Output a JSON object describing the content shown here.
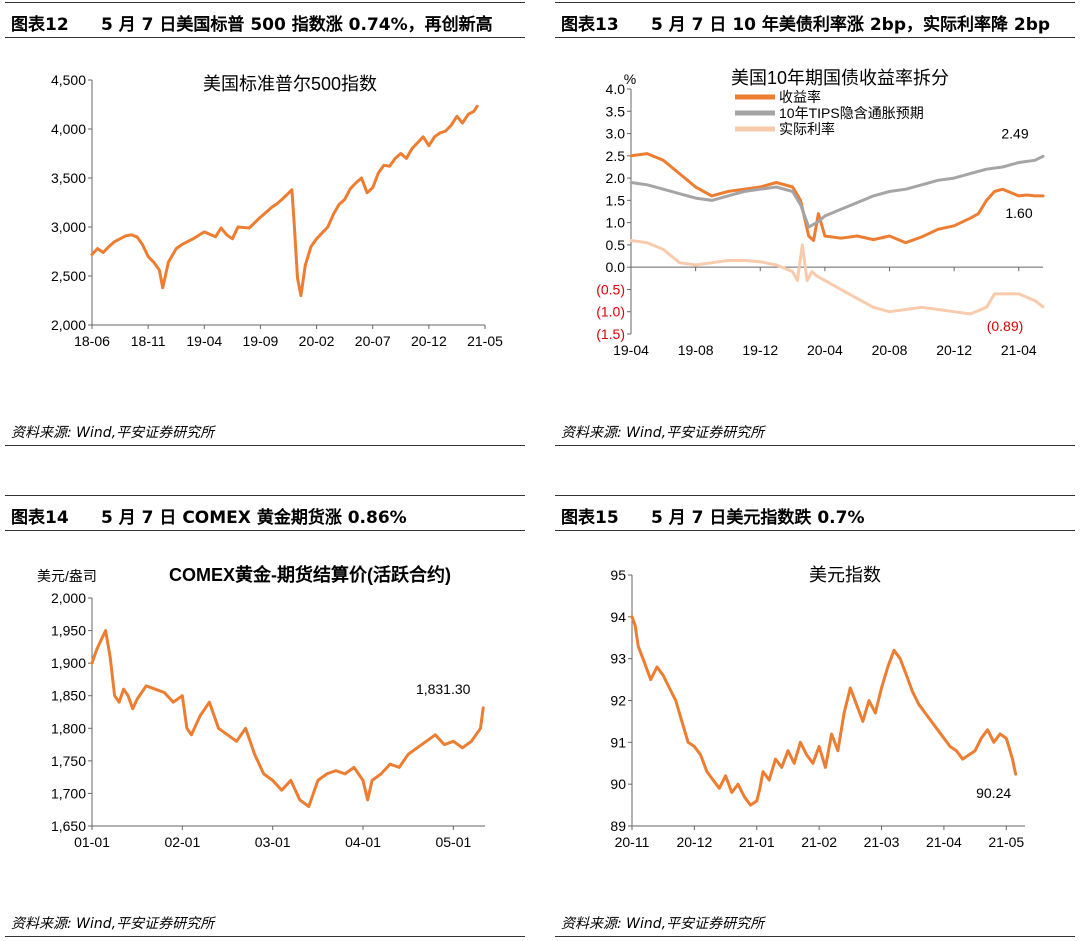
{
  "panels": [
    {
      "id": "p12",
      "header_num": "图表12",
      "header_title": "5 月 7 日美国标普 500 指数涨 0.74%，再创新高",
      "source": "资料来源: Wind,平安证券研究所",
      "chart_data": {
        "type": "line",
        "title": "美国标准普尔500指数",
        "ylim": [
          2000,
          4500
        ],
        "yticks": [
          2000,
          2500,
          3000,
          3500,
          4000,
          4500
        ],
        "ytick_labels": [
          "2,000",
          "2,500",
          "3,000",
          "3,500",
          "4,000",
          "4,500"
        ],
        "xlim": [
          0,
          35
        ],
        "xticks": [
          0,
          5,
          10,
          15,
          20,
          25,
          30,
          35
        ],
        "xtick_labels": [
          "18-06",
          "18-11",
          "19-04",
          "19-09",
          "20-02",
          "20-07",
          "20-12",
          "21-05"
        ],
        "color": "#ed7d31",
        "series": [
          {
            "x": [
              0,
              0.5,
              1,
              1.5,
              2,
              2.5,
              3,
              3.5,
              4,
              4.5,
              5,
              5.5,
              6,
              6.3,
              6.8,
              7.5,
              8,
              9,
              10,
              11,
              11.5,
              12,
              12.5,
              13,
              14,
              15,
              16,
              16.5,
              17,
              17.8,
              18,
              18.3,
              18.6,
              19,
              19.5,
              20,
              20.5,
              21,
              21.5,
              22,
              22.5,
              23,
              23.5,
              24,
              24.5,
              25,
              25.5,
              26,
              26.5,
              27,
              27.5,
              28,
              28.5,
              29,
              29.5,
              30,
              30.5,
              31,
              31.5,
              32,
              32.5,
              33,
              33.5,
              34,
              34.3
            ],
            "y": [
              2720,
              2780,
              2740,
              2800,
              2850,
              2880,
              2910,
              2920,
              2900,
              2820,
              2700,
              2640,
              2560,
              2380,
              2640,
              2780,
              2820,
              2880,
              2950,
              2900,
              2990,
              2920,
              2880,
              3000,
              2990,
              3100,
              3200,
              3240,
              3290,
              3380,
              3050,
              2480,
              2300,
              2610,
              2800,
              2880,
              2940,
              3000,
              3130,
              3230,
              3280,
              3390,
              3450,
              3500,
              3350,
              3400,
              3550,
              3630,
              3620,
              3700,
              3750,
              3700,
              3800,
              3860,
              3920,
              3830,
              3920,
              3960,
              3980,
              4040,
              4130,
              4060,
              4150,
              4180,
              4232
            ]
          }
        ]
      }
    },
    {
      "id": "p13",
      "header_num": "图表13",
      "header_title": "5 月 7 日 10 年美债利率涨 2bp，实际利率降 2bp",
      "source": "资料来源: Wind,平安证券研究所",
      "chart_data": {
        "type": "line",
        "title": "美国10年期国债收益率拆分",
        "unit": "%",
        "ylim": [
          -1.5,
          4.0
        ],
        "yticks": [
          -1.5,
          -1.0,
          -0.5,
          0,
          0.5,
          1.0,
          1.5,
          2.0,
          2.5,
          3.0,
          3.5,
          4.0
        ],
        "ytick_labels": [
          "(1.5)",
          "(1.0)",
          "(0.5)",
          "0.0",
          "0.5",
          "1.0",
          "1.5",
          "2.0",
          "2.5",
          "3.0",
          "3.5",
          "4.0"
        ],
        "negative_tick_color": "#e00000",
        "xlim": [
          0,
          25.5
        ],
        "xticks": [
          0,
          4,
          8,
          12,
          16,
          20,
          24
        ],
        "xtick_labels": [
          "19-04",
          "19-08",
          "19-12",
          "20-04",
          "20-08",
          "20-12",
          "21-04"
        ],
        "legend_position": "top-left",
        "annotations": [
          {
            "text": "2.49",
            "series": 1,
            "color": "#000000"
          },
          {
            "text": "1.60",
            "series": 0,
            "color": "#000000"
          },
          {
            "text": "(0.89)",
            "series": 2,
            "color": "#e00000"
          }
        ],
        "series": [
          {
            "name": "收益率",
            "color": "#ed7d31",
            "x": [
              0,
              1,
              2,
              3,
              4,
              5,
              6,
              7,
              8,
              9,
              10,
              10.5,
              11,
              11.3,
              11.6,
              12,
              13,
              14,
              15,
              16,
              17,
              18,
              19,
              20,
              21,
              21.5,
              22,
              22.5,
              23,
              24,
              24.5,
              25,
              25.5
            ],
            "y": [
              2.5,
              2.55,
              2.4,
              2.1,
              1.8,
              1.6,
              1.7,
              1.75,
              1.8,
              1.9,
              1.8,
              1.5,
              0.7,
              0.6,
              1.2,
              0.7,
              0.65,
              0.7,
              0.62,
              0.7,
              0.55,
              0.68,
              0.85,
              0.93,
              1.1,
              1.2,
              1.5,
              1.7,
              1.75,
              1.6,
              1.62,
              1.6,
              1.6
            ]
          },
          {
            "name": "10年TIPS隐含通胀预期",
            "color": "#a5a5a5",
            "x": [
              0,
              1,
              2,
              3,
              4,
              5,
              6,
              7,
              8,
              9,
              10,
              10.5,
              11,
              11.5,
              12,
              13,
              14,
              15,
              16,
              17,
              18,
              19,
              20,
              21,
              22,
              23,
              24,
              25,
              25.5
            ],
            "y": [
              1.9,
              1.85,
              1.75,
              1.65,
              1.55,
              1.5,
              1.6,
              1.7,
              1.75,
              1.8,
              1.7,
              1.4,
              0.9,
              1.0,
              1.15,
              1.3,
              1.45,
              1.6,
              1.7,
              1.75,
              1.85,
              1.95,
              2.0,
              2.1,
              2.2,
              2.25,
              2.35,
              2.4,
              2.49
            ]
          },
          {
            "name": "实际利率",
            "color": "#f8cbad",
            "x": [
              0,
              1,
              2,
              3,
              4,
              5,
              6,
              7,
              8,
              9,
              10,
              10.3,
              10.6,
              10.9,
              11.2,
              11.5,
              12,
              13,
              14,
              15,
              16,
              17,
              18,
              19,
              20,
              21,
              22,
              22.5,
              23,
              24,
              25,
              25.5
            ],
            "y": [
              0.6,
              0.55,
              0.4,
              0.1,
              0.05,
              0.1,
              0.15,
              0.15,
              0.12,
              0.05,
              -0.1,
              -0.3,
              0.5,
              -0.3,
              -0.1,
              -0.2,
              -0.3,
              -0.5,
              -0.7,
              -0.9,
              -1.0,
              -0.95,
              -0.9,
              -0.95,
              -1.0,
              -1.05,
              -0.9,
              -0.6,
              -0.6,
              -0.6,
              -0.75,
              -0.89
            ]
          }
        ]
      }
    },
    {
      "id": "p14",
      "header_num": "图表14",
      "header_title": "5 月 7 日 COMEX 黄金期货涨 0.86%",
      "source": "资料来源: Wind,平安证券研究所",
      "chart_data": {
        "type": "line",
        "title": "COMEX黄金-期货结算价(活跃合约)",
        "unit": "美元/盎司",
        "ylim": [
          1650,
          2000
        ],
        "yticks": [
          1650,
          1700,
          1750,
          1800,
          1850,
          1900,
          1950,
          2000
        ],
        "ytick_labels": [
          "1,650",
          "1,700",
          "1,750",
          "1,800",
          "1,850",
          "1,900",
          "1,950",
          "2,000"
        ],
        "xlim": [
          0,
          4.35
        ],
        "xticks": [
          0,
          1,
          2,
          3,
          4
        ],
        "xtick_labels": [
          "01-01",
          "02-01",
          "03-01",
          "04-01",
          "05-01"
        ],
        "color": "#ed7d31",
        "annotations": [
          {
            "text": "1,831.30",
            "series": 0
          }
        ],
        "series": [
          {
            "x": [
              0,
              0.05,
              0.1,
              0.15,
              0.2,
              0.25,
              0.3,
              0.35,
              0.4,
              0.45,
              0.5,
              0.6,
              0.7,
              0.8,
              0.9,
              1.0,
              1.05,
              1.1,
              1.2,
              1.3,
              1.4,
              1.5,
              1.6,
              1.7,
              1.8,
              1.9,
              2.0,
              2.1,
              2.2,
              2.3,
              2.4,
              2.5,
              2.6,
              2.7,
              2.8,
              2.9,
              3.0,
              3.05,
              3.1,
              3.2,
              3.3,
              3.4,
              3.5,
              3.6,
              3.7,
              3.8,
              3.9,
              4.0,
              4.1,
              4.2,
              4.3,
              4.33
            ],
            "y": [
              1900,
              1920,
              1935,
              1950,
              1910,
              1850,
              1840,
              1860,
              1850,
              1830,
              1845,
              1865,
              1860,
              1855,
              1840,
              1850,
              1800,
              1790,
              1820,
              1840,
              1800,
              1790,
              1780,
              1800,
              1760,
              1730,
              1720,
              1705,
              1720,
              1690,
              1680,
              1720,
              1730,
              1735,
              1730,
              1740,
              1720,
              1690,
              1720,
              1730,
              1745,
              1740,
              1760,
              1770,
              1780,
              1790,
              1775,
              1780,
              1770,
              1780,
              1800,
              1831.3
            ]
          }
        ]
      }
    },
    {
      "id": "p15",
      "header_num": "图表15",
      "header_title": "5 月 7 日美元指数跌 0.7%",
      "source": "资料来源: Wind,平安证券研究所",
      "chart_data": {
        "type": "line",
        "title": "美元指数",
        "ylim": [
          89,
          95
        ],
        "yticks": [
          89,
          90,
          91,
          92,
          93,
          94,
          95
        ],
        "ytick_labels": [
          "89",
          "90",
          "91",
          "92",
          "93",
          "94",
          "95"
        ],
        "xlim": [
          0,
          6.3
        ],
        "xticks": [
          0,
          1,
          2,
          3,
          4,
          5,
          6
        ],
        "xtick_labels": [
          "20-11",
          "20-12",
          "21-01",
          "21-02",
          "21-03",
          "21-04",
          "21-05"
        ],
        "color": "#ed7d31",
        "annotations": [
          {
            "text": "90.24",
            "series": 0
          }
        ],
        "series": [
          {
            "x": [
              0,
              0.05,
              0.1,
              0.2,
              0.3,
              0.4,
              0.5,
              0.6,
              0.7,
              0.8,
              0.9,
              1.0,
              1.1,
              1.2,
              1.3,
              1.4,
              1.5,
              1.6,
              1.7,
              1.8,
              1.9,
              2.0,
              2.05,
              2.1,
              2.2,
              2.3,
              2.4,
              2.5,
              2.6,
              2.7,
              2.8,
              2.9,
              3.0,
              3.1,
              3.2,
              3.3,
              3.4,
              3.5,
              3.6,
              3.7,
              3.8,
              3.9,
              4.0,
              4.1,
              4.2,
              4.3,
              4.4,
              4.5,
              4.6,
              4.7,
              4.8,
              4.9,
              5.0,
              5.1,
              5.2,
              5.3,
              5.4,
              5.5,
              5.6,
              5.7,
              5.8,
              5.9,
              6.0,
              6.1,
              6.15
            ],
            "y": [
              94.0,
              93.8,
              93.3,
              92.9,
              92.5,
              92.8,
              92.6,
              92.3,
              92.0,
              91.5,
              91.0,
              90.9,
              90.7,
              90.3,
              90.1,
              89.9,
              90.2,
              89.8,
              90.0,
              89.7,
              89.5,
              89.6,
              89.9,
              90.3,
              90.1,
              90.6,
              90.4,
              90.8,
              90.5,
              91.0,
              90.7,
              90.5,
              90.9,
              90.4,
              91.2,
              90.8,
              91.7,
              92.3,
              91.9,
              91.5,
              92.0,
              91.7,
              92.3,
              92.8,
              93.2,
              93.0,
              92.6,
              92.2,
              91.9,
              91.7,
              91.5,
              91.3,
              91.1,
              90.9,
              90.8,
              90.6,
              90.7,
              90.8,
              91.1,
              91.3,
              91.0,
              91.2,
              91.1,
              90.6,
              90.24
            ]
          }
        ]
      }
    }
  ]
}
